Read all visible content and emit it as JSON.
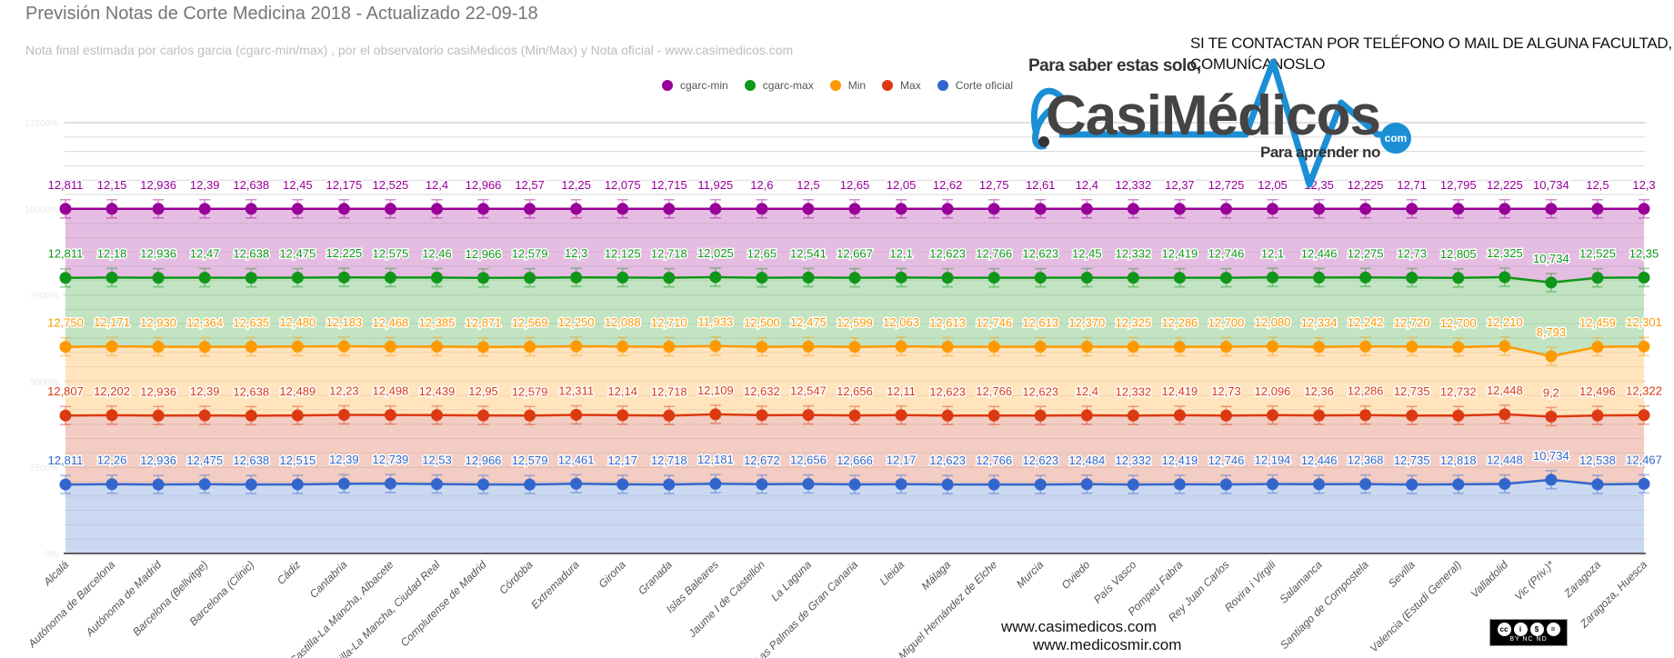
{
  "chart_data": {
    "type": "area",
    "stacking": "percent",
    "title": "Previsión Notas de Corte Medicina 2018 - Actualizado 22-09-18",
    "subtitle": "Nota final estimada por carlos garcia (cgarc-min/max) , por el observatorio casiMedicos (Min/Max) y Nota oficial  - www.casimedicos.com",
    "legend_position": "top",
    "grid": true,
    "ylim": [
      0,
      12500
    ],
    "yticks": [
      "0%",
      "2500%",
      "5000%",
      "7500%",
      "10000%",
      "12500%"
    ],
    "categories": [
      "Alcalá",
      "Autónoma de Barcelona",
      "Autónoma de Madrid",
      "Barcelona (Bellvitge)",
      "Barcelona (Clinic)",
      "Cádiz",
      "Cantabria",
      "Castilla-La Mancha, Albacete",
      "Castilla-La Mancha, Ciudad Real",
      "Complutense de Madrid",
      "Córdoba",
      "Extremadura",
      "Girona",
      "Granada",
      "Islas Baleares",
      "Jaume I de Castellón",
      "La Laguna",
      "Las Palmas de Gran Canaria",
      "Lleida",
      "Málaga",
      "Miguel Hernández de Elche",
      "Murcia",
      "Oviedo",
      "País Vasco",
      "Pompeu Fabra",
      "Rey Juan Carlos",
      "Rovira i Virgili",
      "Salamanca",
      "Santiago de Compostela",
      "Sevilla",
      "Valencia (Estudi General)",
      "Valladolid",
      "Vic (Priv.)*",
      "Zaragoza",
      "Zaragoza, Huesca"
    ],
    "series": [
      {
        "name": "cgarc-min",
        "color": "#990099",
        "fill": "#e0b1dd",
        "decimals": null,
        "values": [
          12.811,
          12.15,
          12.936,
          12.39,
          12.638,
          12.45,
          12.175,
          12.525,
          12.4,
          12.966,
          12.57,
          12.25,
          12.075,
          12.715,
          11.925,
          12.6,
          12.5,
          12.65,
          12.05,
          12.62,
          12.75,
          12.61,
          12.4,
          12.332,
          12.37,
          12.725,
          12.05,
          12.35,
          12.225,
          12.71,
          12.795,
          12.225,
          10.734,
          12.5,
          12.3
        ]
      },
      {
        "name": "cgarc-max",
        "color": "#109618",
        "fill": "#b7dfb9",
        "decimals": null,
        "values": [
          12.811,
          12.18,
          12.936,
          12.47,
          12.638,
          12.475,
          12.225,
          12.575,
          12.46,
          12.966,
          12.579,
          12.3,
          12.125,
          12.718,
          12.025,
          12.65,
          12.541,
          12.667,
          12.1,
          12.623,
          12.766,
          12.623,
          12.45,
          12.332,
          12.419,
          12.746,
          12.1,
          12.446,
          12.275,
          12.73,
          12.805,
          12.325,
          10.734,
          12.525,
          12.35
        ]
      },
      {
        "name": "Min",
        "color": "#ff9900",
        "fill": "#ffdfb1",
        "decimals": 3,
        "values": [
          12.75,
          12.171,
          12.93,
          12.364,
          12.635,
          12.48,
          12.183,
          12.468,
          12.385,
          12.871,
          12.569,
          12.25,
          12.088,
          12.71,
          11.933,
          12.5,
          12.475,
          12.599,
          12.063,
          12.613,
          12.746,
          12.613,
          12.37,
          12.325,
          12.286,
          12.7,
          12.08,
          12.334,
          12.242,
          12.72,
          12.7,
          12.21,
          8.793,
          12.459,
          12.301
        ]
      },
      {
        "name": "Max",
        "color": "#dc3912",
        "fill": "#f1c4b8",
        "decimals": null,
        "values": [
          12.807,
          12.202,
          12.936,
          12.39,
          12.638,
          12.489,
          12.23,
          12.498,
          12.439,
          12.95,
          12.579,
          12.311,
          12.14,
          12.718,
          12.109,
          12.632,
          12.547,
          12.656,
          12.11,
          12.623,
          12.766,
          12.623,
          12.4,
          12.332,
          12.419,
          12.73,
          12.096,
          12.36,
          12.286,
          12.735,
          12.732,
          12.448,
          9.2,
          12.496,
          12.322
        ]
      },
      {
        "name": "Corte oficial",
        "color": "#3366cc",
        "fill": "#c2d1ef",
        "decimals": null,
        "values": [
          12.811,
          12.26,
          12.936,
          12.475,
          12.638,
          12.515,
          12.39,
          12.739,
          12.53,
          12.966,
          12.579,
          12.461,
          12.17,
          12.718,
          12.181,
          12.672,
          12.656,
          12.666,
          12.17,
          12.623,
          12.766,
          12.623,
          12.484,
          12.332,
          12.419,
          12.746,
          12.194,
          12.446,
          12.368,
          12.735,
          12.818,
          12.448,
          10.734,
          12.538,
          12.467
        ]
      }
    ]
  },
  "notice": {
    "line1": "SI TE CONTACTAN POR TELÉFONO O MAIL DE ALGUNA FACULTAD,",
    "line2": "COMUNÍCANOSLO"
  },
  "logo": {
    "top": "Para saber estas solo,",
    "word": "CasiMédicos",
    "com": "com",
    "bottom": "Para aprender no",
    "color": "#1a8fd6"
  },
  "footer": {
    "site1": "www.casimedicos.com",
    "site2": "www.medicosmir.com"
  },
  "license": {
    "text": "BY  NC  ND",
    "icons": [
      "cc",
      "by",
      "nc",
      "nd"
    ]
  }
}
